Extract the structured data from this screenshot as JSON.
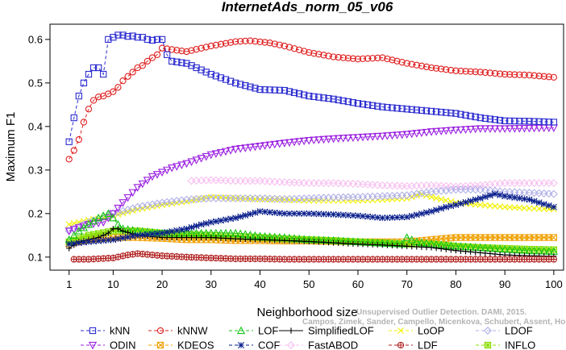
{
  "chart_data": {
    "type": "line",
    "title": "InternetAds_norm_05_v06",
    "xlabel": "Neighborhood size",
    "ylabel": "Maximum F1",
    "xlim": [
      1,
      100
    ],
    "ylim": [
      0.07,
      0.635
    ],
    "x_ticks": [
      1,
      10,
      20,
      30,
      40,
      50,
      60,
      70,
      80,
      90,
      100
    ],
    "x_tick_labels": [
      "1",
      "10",
      "20",
      "30",
      "40",
      "50",
      "60",
      "70",
      "80",
      "90",
      "100"
    ],
    "y_ticks": [
      0.1,
      0.2,
      0.3,
      0.4,
      0.5,
      0.6
    ],
    "y_tick_labels": [
      "0.1",
      "0.2",
      "0.3",
      "0.4",
      "0.5",
      "0.6"
    ],
    "legend_position": "bottom",
    "credit_lines": [
      "Unsupervised Outlier Detection. DAMI, 2015.",
      "Campos, Zimek, Sander, Campello, Micenkova, Schubert, Assent, Houle"
    ],
    "series": [
      {
        "name": "kNN",
        "color": "#2b2bd0",
        "marker": "square",
        "dash": "dashed",
        "x": [
          1,
          2,
          3,
          4,
          5,
          6,
          7,
          8,
          9,
          10,
          11,
          12,
          13,
          14,
          15,
          16,
          17,
          18,
          19,
          20,
          21,
          22,
          25,
          30,
          35,
          40,
          45,
          50,
          55,
          60,
          65,
          70,
          75,
          80,
          85,
          90,
          95,
          100
        ],
        "y": [
          0.365,
          0.42,
          0.47,
          0.5,
          0.52,
          0.535,
          0.535,
          0.52,
          0.6,
          0.605,
          0.61,
          0.61,
          0.607,
          0.608,
          0.605,
          0.605,
          0.6,
          0.598,
          0.6,
          0.6,
          0.565,
          0.55,
          0.545,
          0.52,
          0.5,
          0.485,
          0.483,
          0.47,
          0.463,
          0.453,
          0.445,
          0.44,
          0.435,
          0.43,
          0.42,
          0.413,
          0.412,
          0.41
        ]
      },
      {
        "name": "kNNW",
        "color": "#e02020",
        "marker": "circle",
        "dash": "dashed",
        "x": [
          1,
          2,
          3,
          4,
          5,
          6,
          7,
          8,
          9,
          10,
          11,
          12,
          13,
          14,
          15,
          16,
          17,
          18,
          19,
          20,
          25,
          30,
          35,
          38,
          42,
          45,
          50,
          55,
          60,
          65,
          70,
          75,
          80,
          85,
          90,
          95,
          100
        ],
        "y": [
          0.325,
          0.345,
          0.37,
          0.41,
          0.44,
          0.46,
          0.468,
          0.47,
          0.475,
          0.48,
          0.49,
          0.505,
          0.515,
          0.525,
          0.535,
          0.54,
          0.55,
          0.558,
          0.565,
          0.58,
          0.572,
          0.585,
          0.595,
          0.597,
          0.592,
          0.585,
          0.57,
          0.56,
          0.555,
          0.558,
          0.545,
          0.535,
          0.528,
          0.525,
          0.52,
          0.518,
          0.513
        ]
      },
      {
        "name": "LOF",
        "color": "#16c416",
        "marker": "triangle-up",
        "dash": "dashed",
        "x": [
          1,
          3,
          5,
          7,
          8,
          9,
          10,
          11,
          12,
          15,
          20,
          25,
          30,
          35,
          40,
          45,
          50,
          55,
          60,
          65,
          69,
          70,
          72,
          75,
          80,
          85,
          90,
          95,
          100
        ],
        "y": [
          0.14,
          0.16,
          0.175,
          0.19,
          0.195,
          0.2,
          0.19,
          0.175,
          0.165,
          0.16,
          0.155,
          0.155,
          0.155,
          0.155,
          0.148,
          0.145,
          0.14,
          0.138,
          0.135,
          0.132,
          0.13,
          0.145,
          0.135,
          0.13,
          0.125,
          0.122,
          0.118,
          0.115,
          0.113
        ]
      },
      {
        "name": "SimplifiedLOF",
        "color": "#000000",
        "marker": "plus",
        "dash": "solid",
        "x": [
          1,
          3,
          5,
          7,
          9,
          10,
          11,
          12,
          15,
          20,
          25,
          30,
          35,
          40,
          45,
          50,
          55,
          60,
          65,
          70,
          75,
          80,
          85,
          90,
          95,
          100
        ],
        "y": [
          0.12,
          0.135,
          0.14,
          0.145,
          0.155,
          0.165,
          0.165,
          0.16,
          0.15,
          0.145,
          0.145,
          0.145,
          0.142,
          0.14,
          0.138,
          0.136,
          0.133,
          0.13,
          0.128,
          0.125,
          0.122,
          0.115,
          0.11,
          0.105,
          0.103,
          0.102
        ]
      },
      {
        "name": "LoOP",
        "color": "#f2f200",
        "marker": "x",
        "dash": "dashed",
        "x": [
          1,
          3,
          5,
          8,
          10,
          15,
          20,
          25,
          30,
          35,
          40,
          45,
          50,
          55,
          60,
          65,
          70,
          73,
          75,
          80,
          85,
          90,
          95,
          100
        ],
        "y": [
          0.175,
          0.18,
          0.185,
          0.19,
          0.195,
          0.21,
          0.22,
          0.228,
          0.238,
          0.235,
          0.233,
          0.232,
          0.23,
          0.23,
          0.23,
          0.232,
          0.235,
          0.245,
          0.238,
          0.225,
          0.22,
          0.215,
          0.212,
          0.21
        ]
      },
      {
        "name": "LDOF",
        "color": "#b0b0e8",
        "marker": "diamond",
        "dash": "dashed",
        "x": [
          1,
          5,
          10,
          15,
          20,
          25,
          30,
          35,
          40,
          45,
          50,
          55,
          60,
          65,
          70,
          75,
          80,
          85,
          90,
          95,
          100
        ],
        "y": [
          0.16,
          0.18,
          0.2,
          0.215,
          0.225,
          0.232,
          0.235,
          0.235,
          0.235,
          0.233,
          0.235,
          0.237,
          0.238,
          0.24,
          0.242,
          0.25,
          0.255,
          0.255,
          0.25,
          0.248,
          0.245
        ]
      },
      {
        "name": "ODIN",
        "color": "#9a1fe0",
        "marker": "triangle-down",
        "dash": "dashed",
        "x": [
          1,
          5,
          8,
          10,
          12,
          15,
          18,
          20,
          22,
          25,
          30,
          35,
          40,
          45,
          50,
          55,
          60,
          65,
          70,
          75,
          80,
          85,
          90,
          95,
          100
        ],
        "y": [
          0.16,
          0.175,
          0.18,
          0.2,
          0.225,
          0.26,
          0.285,
          0.295,
          0.305,
          0.315,
          0.335,
          0.348,
          0.355,
          0.362,
          0.368,
          0.372,
          0.375,
          0.378,
          0.382,
          0.388,
          0.392,
          0.395,
          0.395,
          0.396,
          0.397
        ]
      },
      {
        "name": "KDEOS",
        "color": "#f0a000",
        "marker": "cross-square",
        "dash": "dashed",
        "x": [
          1,
          5,
          10,
          15,
          20,
          25,
          30,
          35,
          40,
          45,
          50,
          55,
          60,
          65,
          70,
          75,
          80,
          85,
          90,
          95,
          100
        ],
        "y": [
          0.13,
          0.14,
          0.145,
          0.145,
          0.143,
          0.14,
          0.14,
          0.138,
          0.138,
          0.137,
          0.137,
          0.136,
          0.135,
          0.135,
          0.135,
          0.14,
          0.145,
          0.145,
          0.145,
          0.145,
          0.145
        ]
      },
      {
        "name": "COF",
        "color": "#0a1f8c",
        "marker": "star",
        "dash": "dashed",
        "x": [
          1,
          5,
          10,
          15,
          20,
          25,
          28,
          30,
          35,
          40,
          45,
          50,
          55,
          60,
          65,
          70,
          75,
          78,
          80,
          85,
          88,
          90,
          95,
          100
        ],
        "y": [
          0.13,
          0.135,
          0.14,
          0.15,
          0.155,
          0.165,
          0.175,
          0.18,
          0.19,
          0.205,
          0.2,
          0.2,
          0.198,
          0.195,
          0.19,
          0.192,
          0.205,
          0.215,
          0.22,
          0.235,
          0.245,
          0.24,
          0.232,
          0.215
        ]
      },
      {
        "name": "FastABOD",
        "color": "#f7c0f0",
        "marker": "diamond",
        "dash": "dashed",
        "x": [
          26,
          30,
          35,
          40,
          45,
          50,
          55,
          60,
          65,
          70,
          75,
          80,
          85,
          90,
          95,
          100
        ],
        "y": [
          0.275,
          0.277,
          0.275,
          0.275,
          0.272,
          0.27,
          0.27,
          0.268,
          0.265,
          0.263,
          0.265,
          0.262,
          0.265,
          0.27,
          0.27,
          0.27
        ]
      },
      {
        "name": "LDF",
        "color": "#b22222",
        "marker": "circle-plus",
        "dash": "dashed",
        "x": [
          2,
          5,
          10,
          13,
          15,
          20,
          25,
          30,
          35,
          40,
          45,
          50,
          55,
          60,
          65,
          70,
          75,
          80,
          85,
          90,
          95,
          100
        ],
        "y": [
          0.095,
          0.095,
          0.098,
          0.105,
          0.108,
          0.103,
          0.1,
          0.098,
          0.096,
          0.096,
          0.095,
          0.095,
          0.095,
          0.095,
          0.095,
          0.095,
          0.095,
          0.095,
          0.095,
          0.095,
          0.095,
          0.095
        ]
      },
      {
        "name": "INFLO",
        "color": "#88dd00",
        "marker": "star-square",
        "dash": "dashed",
        "x": [
          1,
          5,
          10,
          15,
          20,
          25,
          30,
          35,
          40,
          45,
          50,
          55,
          60,
          65,
          70,
          75,
          80,
          85,
          90,
          95,
          100
        ],
        "y": [
          0.135,
          0.15,
          0.16,
          0.16,
          0.155,
          0.152,
          0.15,
          0.148,
          0.145,
          0.142,
          0.14,
          0.138,
          0.135,
          0.133,
          0.13,
          0.13,
          0.125,
          0.122,
          0.12,
          0.118,
          0.117
        ]
      }
    ]
  }
}
